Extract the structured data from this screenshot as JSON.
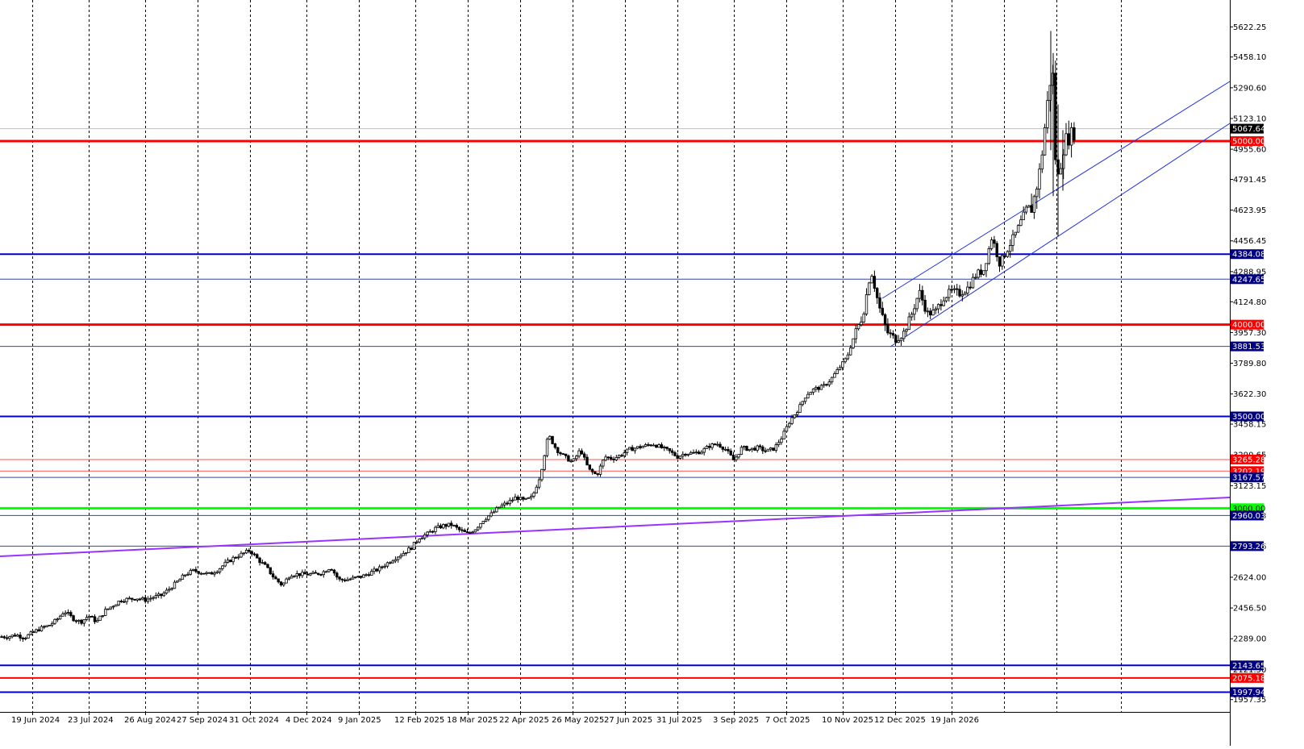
{
  "chart_data": {
    "type": "candlestick",
    "symbol": "",
    "y_range": [
      1932.0,
      5720.0
    ],
    "y_ticks": [
      "5622.25",
      "5458.10",
      "5290.60",
      "5123.10",
      "4955.60",
      "4791.45",
      "4623.95",
      "4456.45",
      "4288.95",
      "4124.80",
      "3957.30",
      "3789.80",
      "3622.30",
      "3458.15",
      "3290.65",
      "3123.15",
      "2960.03",
      "2793.26",
      "2624.00",
      "2456.50",
      "2289.00",
      "2121.50",
      "1957.35"
    ],
    "x_labels": [
      "19 Jun 2024",
      "23 Jul 2024",
      "26 Aug 2024",
      "27 Sep 2024",
      "31 Oct 2024",
      "4 Dec 2024",
      "9 Jan 2025",
      "12 Feb 2025",
      "18 Mar 2025",
      "22 Apr 2025",
      "26 May 2025",
      "27 Jun 2025",
      "31 Jul 2025",
      "3 Sep 2025",
      "7 Oct 2025",
      "10 Nov 2025",
      "12 Dec 2025",
      "19 Jan 2026"
    ],
    "current_price": {
      "label": "5067.64",
      "value": 5067.64,
      "line_color": "#c0c0c0",
      "bg": "#000000",
      "fg": "#ffffff"
    },
    "levels": [
      {
        "label": "5000.00",
        "value": 5000.0,
        "color": "#ff0000",
        "width": 3
      },
      {
        "label": "4384.08",
        "value": 4384.08,
        "color": "#0000cc",
        "width": 2
      },
      {
        "label": "4247.65",
        "value": 4247.65,
        "color": "#3344aa",
        "width": 1
      },
      {
        "label": "4000.00",
        "value": 4000.0,
        "color": "#ff0000",
        "width": 3
      },
      {
        "label": "3881.53",
        "value": 3881.53,
        "color": "#3344aa",
        "width": 1
      },
      {
        "label": "3500.00",
        "value": 3500.0,
        "color": "#0000cc",
        "width": 2
      },
      {
        "label": "3265.28",
        "value": 3265.28,
        "color": "#ff5050",
        "width": 1
      },
      {
        "label": "3202.19",
        "value": 3202.19,
        "color": "#ff5050",
        "width": 1
      },
      {
        "label": "3167.57",
        "value": 3167.57,
        "color": "#3344aa",
        "width": 1
      },
      {
        "label": "3000.00",
        "value": 3000.0,
        "color": "#00ff00",
        "width": 3
      },
      {
        "label": "2960.03",
        "value": 2960.03,
        "color": "#3344aa",
        "width": 1
      },
      {
        "label": "2793.26",
        "value": 2793.26,
        "color": "#3344aa",
        "width": 1
      },
      {
        "label": "2143.65",
        "value": 2143.65,
        "color": "#0000cc",
        "width": 2
      },
      {
        "label": "2075.18",
        "value": 2075.18,
        "color": "#ff0000",
        "width": 2
      },
      {
        "label": "1997.94",
        "value": 1997.94,
        "color": "#0000cc",
        "width": 2
      }
    ],
    "series": [
      {
        "points": [
          [
            0,
            2300
          ],
          [
            10,
            2300
          ],
          [
            20,
            2310
          ],
          [
            30,
            2295
          ],
          [
            40,
            2320
          ],
          [
            50,
            2345
          ],
          [
            60,
            2360
          ],
          [
            70,
            2390
          ],
          [
            80,
            2440
          ],
          [
            90,
            2400
          ],
          [
            100,
            2380
          ],
          [
            110,
            2415
          ],
          [
            120,
            2380
          ],
          [
            130,
            2440
          ],
          [
            140,
            2470
          ],
          [
            150,
            2500
          ],
          [
            160,
            2505
          ],
          [
            170,
            2510
          ],
          [
            180,
            2500
          ],
          [
            190,
            2515
          ],
          [
            200,
            2525
          ],
          [
            210,
            2560
          ],
          [
            220,
            2600
          ],
          [
            230,
            2640
          ],
          [
            240,
            2660
          ],
          [
            250,
            2650
          ],
          [
            260,
            2640
          ],
          [
            270,
            2665
          ],
          [
            280,
            2700
          ],
          [
            290,
            2730
          ],
          [
            300,
            2750
          ],
          [
            310,
            2770
          ],
          [
            320,
            2720
          ],
          [
            330,
            2680
          ],
          [
            340,
            2620
          ],
          [
            350,
            2580
          ],
          [
            360,
            2640
          ],
          [
            370,
            2640
          ],
          [
            380,
            2640
          ],
          [
            390,
            2640
          ],
          [
            400,
            2650
          ],
          [
            410,
            2680
          ],
          [
            420,
            2610
          ],
          [
            430,
            2610
          ],
          [
            440,
            2620
          ],
          [
            450,
            2630
          ],
          [
            460,
            2650
          ],
          [
            470,
            2670
          ],
          [
            480,
            2700
          ],
          [
            490,
            2730
          ],
          [
            500,
            2755
          ],
          [
            510,
            2785
          ],
          [
            520,
            2840
          ],
          [
            530,
            2860
          ],
          [
            540,
            2890
          ],
          [
            550,
            2905
          ],
          [
            560,
            2910
          ],
          [
            570,
            2880
          ],
          [
            580,
            2860
          ],
          [
            590,
            2890
          ],
          [
            600,
            2940
          ],
          [
            610,
            2970
          ],
          [
            620,
            3010
          ],
          [
            630,
            3030
          ],
          [
            640,
            3060
          ],
          [
            650,
            3040
          ],
          [
            660,
            3060
          ],
          [
            670,
            3180
          ],
          [
            680,
            3400
          ],
          [
            690,
            3320
          ],
          [
            700,
            3280
          ],
          [
            710,
            3250
          ],
          [
            720,
            3320
          ],
          [
            730,
            3210
          ],
          [
            740,
            3180
          ],
          [
            750,
            3280
          ],
          [
            760,
            3270
          ],
          [
            770,
            3290
          ],
          [
            780,
            3320
          ],
          [
            790,
            3330
          ],
          [
            800,
            3340
          ],
          [
            810,
            3350
          ],
          [
            820,
            3330
          ],
          [
            830,
            3310
          ],
          [
            840,
            3280
          ],
          [
            850,
            3300
          ],
          [
            860,
            3300
          ],
          [
            870,
            3310
          ],
          [
            880,
            3340
          ],
          [
            890,
            3350
          ],
          [
            900,
            3320
          ],
          [
            910,
            3260
          ],
          [
            920,
            3330
          ],
          [
            930,
            3320
          ],
          [
            940,
            3330
          ],
          [
            950,
            3310
          ],
          [
            960,
            3325
          ],
          [
            970,
            3390
          ],
          [
            980,
            3480
          ],
          [
            990,
            3540
          ],
          [
            1000,
            3620
          ],
          [
            1010,
            3650
          ],
          [
            1020,
            3660
          ],
          [
            1030,
            3700
          ],
          [
            1040,
            3760
          ],
          [
            1050,
            3820
          ],
          [
            1060,
            3950
          ],
          [
            1070,
            4050
          ],
          [
            1080,
            4300
          ],
          [
            1090,
            4100
          ],
          [
            1100,
            3960
          ],
          [
            1110,
            3920
          ],
          [
            1120,
            3950
          ],
          [
            1130,
            4050
          ],
          [
            1140,
            4180
          ],
          [
            1150,
            4060
          ],
          [
            1160,
            4070
          ],
          [
            1170,
            4150
          ],
          [
            1180,
            4180
          ],
          [
            1190,
            4170
          ],
          [
            1200,
            4200
          ],
          [
            1210,
            4270
          ],
          [
            1220,
            4300
          ],
          [
            1230,
            4480
          ],
          [
            1240,
            4330
          ],
          [
            1250,
            4420
          ],
          [
            1260,
            4500
          ],
          [
            1270,
            4600
          ],
          [
            1280,
            4640
          ],
          [
            1290,
            4850
          ],
          [
            1300,
            5250
          ],
          [
            1305,
            5420
          ],
          [
            1310,
            4750
          ],
          [
            1320,
            5000
          ],
          [
            1330,
            5040
          ],
          [
            1335,
            5067.64
          ]
        ]
      }
    ]
  }
}
